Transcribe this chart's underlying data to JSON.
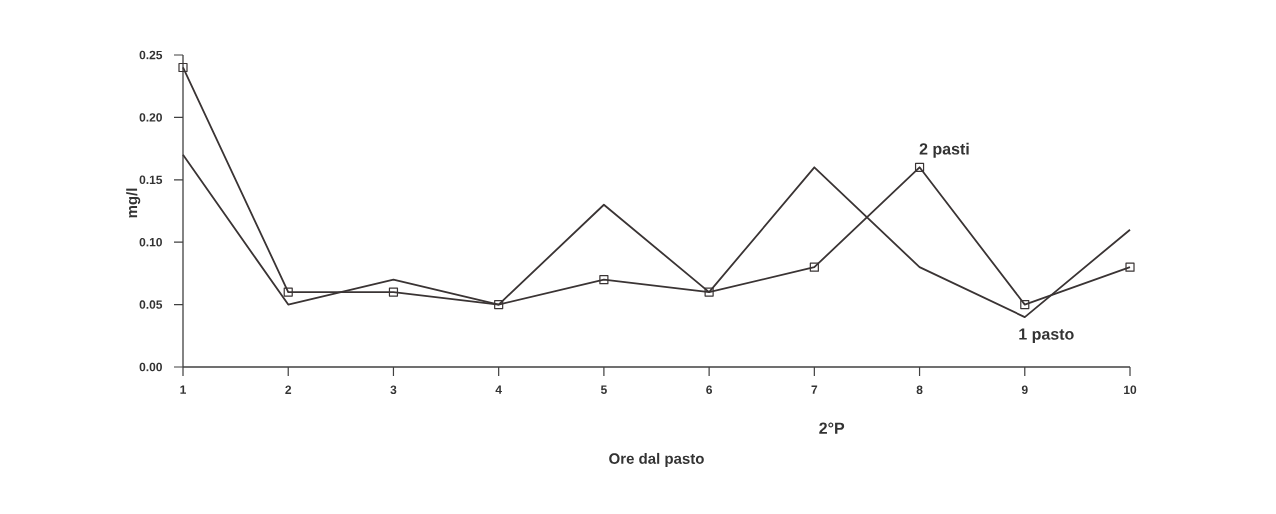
{
  "chart_data": {
    "type": "line",
    "xlabel": "Ore dal pasto",
    "ylabel": "mg/l",
    "x": [
      1,
      2,
      3,
      4,
      5,
      6,
      7,
      8,
      9,
      10
    ],
    "series": [
      {
        "name": "2 pasti",
        "color": "#3a3434",
        "marker": "square",
        "values": [
          0.24,
          0.06,
          0.06,
          0.05,
          0.07,
          0.06,
          0.08,
          0.16,
          0.05,
          0.08
        ]
      },
      {
        "name": "1 pasto",
        "color": "#3a3434",
        "marker": "none",
        "values": [
          0.17,
          0.05,
          0.07,
          0.05,
          0.13,
          0.06,
          0.16,
          0.08,
          0.04,
          0.11
        ]
      }
    ],
    "annotations": [
      "2°P"
    ],
    "xlim": [
      1,
      10
    ],
    "xticks": [
      1,
      2,
      3,
      4,
      5,
      6,
      7,
      8,
      9,
      10
    ],
    "ylim": [
      0,
      0.25
    ],
    "yticks": [
      {
        "value": 0,
        "label": "0.00"
      },
      {
        "value": 0.05,
        "label": "0.05"
      },
      {
        "value": 0.1,
        "label": "0.10"
      },
      {
        "value": 0.15,
        "label": "0.15"
      },
      {
        "value": 0.2,
        "label": "0.20"
      },
      {
        "value": 0.25,
        "label": "0.25"
      }
    ],
    "grid": false,
    "legend": "right",
    "line_style": "solid"
  }
}
